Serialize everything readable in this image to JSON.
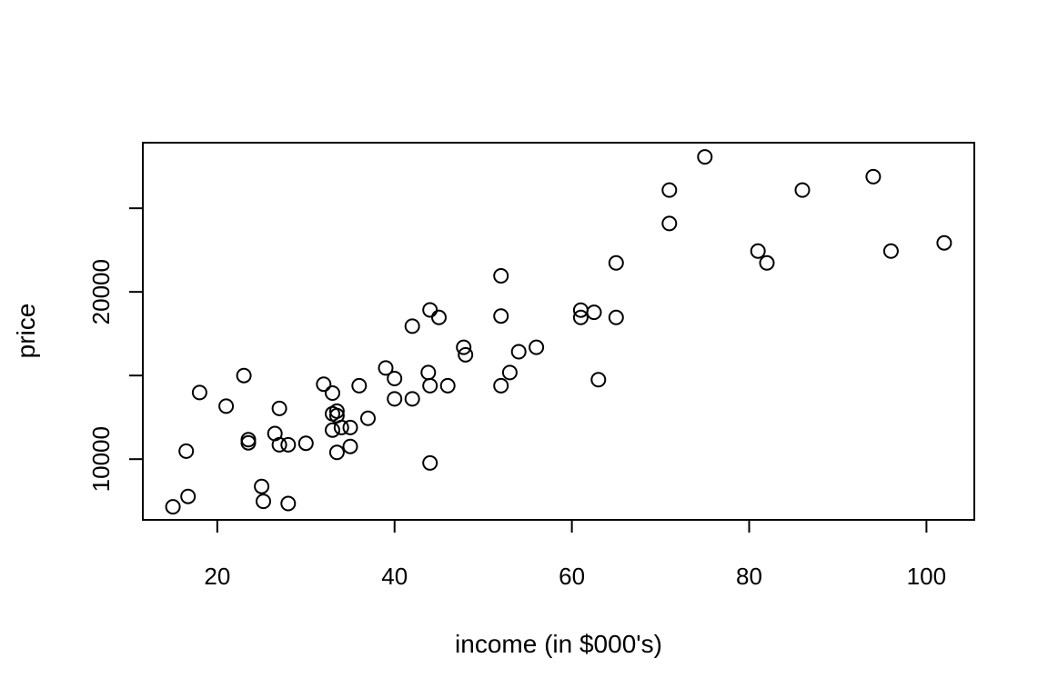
{
  "chart_data": {
    "type": "scatter",
    "title": "",
    "xlabel": "income (in $000's)",
    "ylabel": "price",
    "xlim": [
      11.6,
      105.4
    ],
    "ylim": [
      6370,
      28920
    ],
    "xticks": [
      20,
      40,
      60,
      80,
      100
    ],
    "xtick_labels": [
      "20",
      "40",
      "60",
      "80",
      "100"
    ],
    "yticks": [
      10000,
      15000,
      20000,
      25000
    ],
    "ytick_labels": [
      "10000",
      "",
      "20000",
      ""
    ],
    "grid": false,
    "marker": "open-circle",
    "color": "#000000",
    "points": [
      [
        15,
        7150
      ],
      [
        16.7,
        7770
      ],
      [
        16.5,
        10480
      ],
      [
        18,
        13980
      ],
      [
        21,
        13170
      ],
      [
        23,
        15000
      ],
      [
        23.5,
        11160
      ],
      [
        23.5,
        10980
      ],
      [
        25,
        8370
      ],
      [
        25.2,
        7480
      ],
      [
        26.5,
        11530
      ],
      [
        27,
        13030
      ],
      [
        27,
        10860
      ],
      [
        28,
        10860
      ],
      [
        28,
        7350
      ],
      [
        30,
        10950
      ],
      [
        32,
        14480
      ],
      [
        33,
        13950
      ],
      [
        33,
        12710
      ],
      [
        33,
        11740
      ],
      [
        33.5,
        12870
      ],
      [
        33.5,
        12600
      ],
      [
        34,
        11890
      ],
      [
        33.5,
        10400
      ],
      [
        35,
        11890
      ],
      [
        35,
        10760
      ],
      [
        36,
        14390
      ],
      [
        37,
        12440
      ],
      [
        39,
        15450
      ],
      [
        40,
        14820
      ],
      [
        40,
        13600
      ],
      [
        42,
        13600
      ],
      [
        42,
        17950
      ],
      [
        43.8,
        15180
      ],
      [
        44,
        14390
      ],
      [
        44,
        18920
      ],
      [
        45,
        18470
      ],
      [
        44,
        9770
      ],
      [
        46,
        14390
      ],
      [
        47.8,
        16690
      ],
      [
        48,
        16240
      ],
      [
        52,
        14390
      ],
      [
        52,
        18560
      ],
      [
        52,
        20960
      ],
      [
        53,
        15180
      ],
      [
        54,
        16420
      ],
      [
        56,
        16690
      ],
      [
        61,
        18910
      ],
      [
        61,
        18470
      ],
      [
        62.5,
        18780
      ],
      [
        63,
        14750
      ],
      [
        65,
        18470
      ],
      [
        65,
        21730
      ],
      [
        71,
        26090
      ],
      [
        71,
        24090
      ],
      [
        75,
        28070
      ],
      [
        81,
        22440
      ],
      [
        82,
        21730
      ],
      [
        86,
        26090
      ],
      [
        94,
        26890
      ],
      [
        96,
        22440
      ],
      [
        102,
        22930
      ]
    ]
  }
}
